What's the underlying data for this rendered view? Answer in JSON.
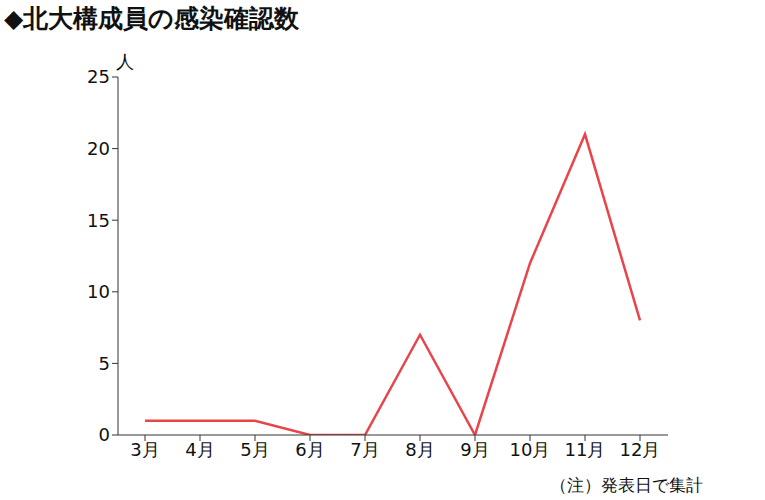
{
  "chart_data": {
    "type": "line",
    "title": "◆北大構成員の感染確認数",
    "ylabel": "人",
    "note": "（注）発表日で集計",
    "categories": [
      "3月",
      "4月",
      "5月",
      "6月",
      "7月",
      "8月",
      "9月",
      "10月",
      "11月",
      "12月"
    ],
    "values": [
      1,
      1,
      1,
      0,
      0,
      7,
      0,
      12,
      21,
      8
    ],
    "color": "#e8454b",
    "ylim": [
      0,
      25
    ],
    "yticks": [
      0,
      5,
      10,
      15,
      20,
      25
    ],
    "grid": false
  }
}
